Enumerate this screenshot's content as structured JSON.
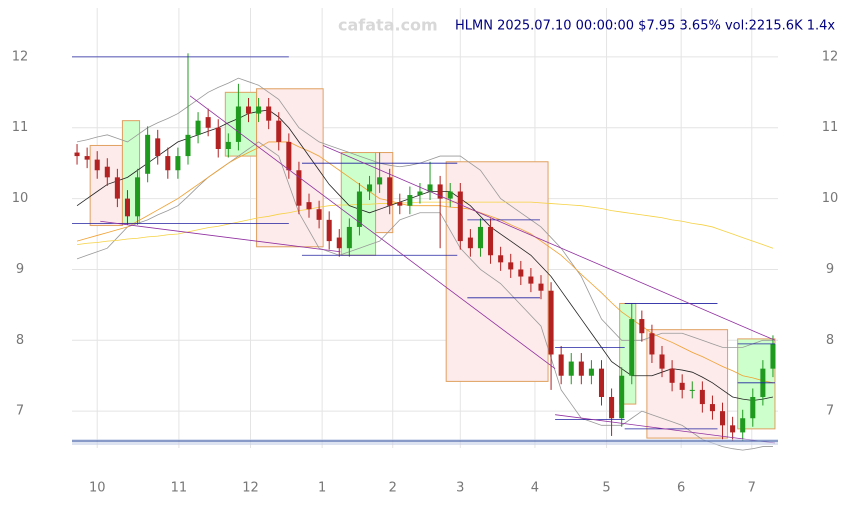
{
  "chart_data": {
    "type": "candlestick",
    "title": "HLMN 2025.07.10 00:00:00 $7.95 3.65% vol:2215.6K 1.4x",
    "watermark": "cafata.com",
    "up_color": "#1f9a1f",
    "down_color": "#b22222",
    "xlim": [
      -0.5,
      69.5
    ],
    "xticks": [
      {
        "value": 2.0,
        "label": "10"
      },
      {
        "value": 10.1,
        "label": "11"
      },
      {
        "value": 17.2,
        "label": "12"
      },
      {
        "value": 24.3,
        "label": "1"
      },
      {
        "value": 31.3,
        "label": "2"
      },
      {
        "value": 38.0,
        "label": "3"
      },
      {
        "value": 45.4,
        "label": "4"
      },
      {
        "value": 52.5,
        "label": "5"
      },
      {
        "value": 59.9,
        "label": "6"
      },
      {
        "value": 66.9,
        "label": "7"
      }
    ],
    "ylim": [
      6.48,
      12.69
    ],
    "yticks": [
      7,
      8,
      9,
      10,
      11,
      12
    ],
    "grid": true,
    "open": [
      10.65,
      10.6,
      10.55,
      10.45,
      10.3,
      10.0,
      9.75,
      10.35,
      10.85,
      10.6,
      10.4,
      10.6,
      10.9,
      11.15,
      11.0,
      10.7,
      10.8,
      11.3,
      11.2,
      11.3,
      11.1,
      10.8,
      10.4,
      9.95,
      9.85,
      9.7,
      9.45,
      9.3,
      9.6,
      10.1,
      10.2,
      10.3,
      9.95,
      9.9,
      10.05,
      10.1,
      10.2,
      10.0,
      10.1,
      9.45,
      9.3,
      9.6,
      9.2,
      9.1,
      9.0,
      8.9,
      8.8,
      8.7,
      7.8,
      7.5,
      7.7,
      7.5,
      7.6,
      7.2,
      6.9,
      7.5,
      8.3,
      8.1,
      7.8,
      7.6,
      7.4,
      7.3,
      7.3,
      7.1,
      7.0,
      6.8,
      6.7,
      6.9,
      7.2,
      7.6
    ],
    "high": [
      10.77,
      10.72,
      10.67,
      10.57,
      10.42,
      10.12,
      10.42,
      11.02,
      10.97,
      10.72,
      10.72,
      12.05,
      11.22,
      11.27,
      11.12,
      10.92,
      11.62,
      11.42,
      11.42,
      11.42,
      11.22,
      10.92,
      10.52,
      10.07,
      9.97,
      9.82,
      9.57,
      9.72,
      10.22,
      10.32,
      10.65,
      10.42,
      10.07,
      10.17,
      10.22,
      10.52,
      10.32,
      10.22,
      10.22,
      9.57,
      9.72,
      9.72,
      9.32,
      9.22,
      9.12,
      9.02,
      8.92,
      8.82,
      7.92,
      7.82,
      7.82,
      7.72,
      7.72,
      7.32,
      7.62,
      8.52,
      8.42,
      8.22,
      7.92,
      7.72,
      7.52,
      7.42,
      7.42,
      7.22,
      7.12,
      6.92,
      7.02,
      7.32,
      7.72,
      8.07
    ],
    "low": [
      10.48,
      10.43,
      10.28,
      10.18,
      9.88,
      9.63,
      9.63,
      10.23,
      10.48,
      10.28,
      10.28,
      10.48,
      10.78,
      10.88,
      10.58,
      10.58,
      10.68,
      11.08,
      11.08,
      10.98,
      10.68,
      10.28,
      9.78,
      9.73,
      9.58,
      9.28,
      9.18,
      9.18,
      9.48,
      9.98,
      10.08,
      9.78,
      9.78,
      9.78,
      9.93,
      9.98,
      9.3,
      9.88,
      9.28,
      9.18,
      9.18,
      9.08,
      8.98,
      8.88,
      8.78,
      8.68,
      8.58,
      7.3,
      7.38,
      7.38,
      7.38,
      7.38,
      7.08,
      6.65,
      6.78,
      7.38,
      7.98,
      7.68,
      7.48,
      7.28,
      7.18,
      7.18,
      6.98,
      6.88,
      6.6,
      6.58,
      6.58,
      6.78,
      7.08,
      7.48
    ],
    "close": [
      10.6,
      10.55,
      10.4,
      10.3,
      10.0,
      9.75,
      10.3,
      10.9,
      10.6,
      10.4,
      10.6,
      10.9,
      11.1,
      11.0,
      10.7,
      10.8,
      11.3,
      11.2,
      11.3,
      11.1,
      10.8,
      10.4,
      9.9,
      9.85,
      9.7,
      9.4,
      9.3,
      9.6,
      10.1,
      10.2,
      10.3,
      9.9,
      9.9,
      10.05,
      10.1,
      10.2,
      10.0,
      10.1,
      9.4,
      9.3,
      9.6,
      9.2,
      9.1,
      9.0,
      8.9,
      8.8,
      8.7,
      7.8,
      7.5,
      7.7,
      7.5,
      7.6,
      7.2,
      6.9,
      7.5,
      8.3,
      8.1,
      7.8,
      7.6,
      7.4,
      7.3,
      7.3,
      7.1,
      7.0,
      6.8,
      6.7,
      6.9,
      7.2,
      7.6,
      7.95
    ],
    "lines": [
      {
        "color": "#999999",
        "values": [
          10.8,
          10.83,
          10.87,
          10.9,
          10.85,
          10.8,
          10.9,
          11.0,
          11.07,
          11.13,
          11.2,
          11.3,
          11.4,
          11.5,
          11.57,
          11.63,
          11.7,
          11.65,
          11.6,
          11.5,
          11.4,
          11.2,
          11.0,
          10.9,
          10.8,
          10.75,
          10.7,
          10.65,
          10.6,
          10.55,
          10.5,
          10.47,
          10.45,
          10.47,
          10.5,
          10.55,
          10.6,
          10.6,
          10.6,
          10.5,
          10.4,
          10.2,
          10.0,
          9.9,
          9.8,
          9.7,
          9.6,
          9.45,
          9.3,
          9.1,
          8.9,
          8.6,
          8.3,
          8.15,
          8.0,
          8.0,
          8.0,
          8.05,
          8.1,
          8.1,
          8.1,
          8.05,
          8.0,
          7.95,
          7.9,
          7.9,
          7.9,
          7.95,
          8.0,
          8.0
        ]
      },
      {
        "color": "#999999",
        "values": [
          9.15,
          9.2,
          9.25,
          9.3,
          9.45,
          9.6,
          9.65,
          9.7,
          9.77,
          9.83,
          9.9,
          10.03,
          10.17,
          10.3,
          10.4,
          10.5,
          10.6,
          10.7,
          10.8,
          10.7,
          10.6,
          10.2,
          9.8,
          9.55,
          9.3,
          9.25,
          9.2,
          9.25,
          9.3,
          9.35,
          9.4,
          9.55,
          9.7,
          9.75,
          9.8,
          9.8,
          9.8,
          9.55,
          9.3,
          9.15,
          9.0,
          8.9,
          8.8,
          8.65,
          8.5,
          8.35,
          8.2,
          7.75,
          7.3,
          7.1,
          6.9,
          6.85,
          6.8,
          6.8,
          6.8,
          6.9,
          7.0,
          6.95,
          6.9,
          6.85,
          6.8,
          6.7,
          6.6,
          6.55,
          6.5,
          6.47,
          6.45,
          6.47,
          6.5,
          6.5
        ]
      },
      {
        "color": "#f5d142",
        "values": [
          9.35,
          9.37,
          9.38,
          9.4,
          9.41,
          9.43,
          9.44,
          9.46,
          9.47,
          9.49,
          9.5,
          9.53,
          9.56,
          9.59,
          9.61,
          9.64,
          9.67,
          9.7,
          9.73,
          9.75,
          9.78,
          9.8,
          9.83,
          9.85,
          9.88,
          9.9,
          9.91,
          9.91,
          9.92,
          9.92,
          9.93,
          9.93,
          9.94,
          9.94,
          9.95,
          9.95,
          9.95,
          9.95,
          9.95,
          9.95,
          9.95,
          9.95,
          9.95,
          9.95,
          9.95,
          9.95,
          9.94,
          9.93,
          9.92,
          9.91,
          9.9,
          9.88,
          9.86,
          9.83,
          9.81,
          9.79,
          9.77,
          9.75,
          9.73,
          9.7,
          9.68,
          9.65,
          9.63,
          9.6,
          9.55,
          9.5,
          9.45,
          9.4,
          9.35,
          9.3
        ]
      },
      {
        "color": "#f0a030",
        "values": [
          9.4,
          9.44,
          9.48,
          9.52,
          9.56,
          9.6,
          9.68,
          9.76,
          9.84,
          9.92,
          10.0,
          10.1,
          10.2,
          10.3,
          10.4,
          10.5,
          10.58,
          10.65,
          10.72,
          10.8,
          10.8,
          10.8,
          10.73,
          10.67,
          10.6,
          10.5,
          10.4,
          10.3,
          10.2,
          10.1,
          10.0,
          9.97,
          9.93,
          9.9,
          9.9,
          9.9,
          9.9,
          9.88,
          9.87,
          9.85,
          9.8,
          9.75,
          9.7,
          9.63,
          9.57,
          9.5,
          9.4,
          9.3,
          9.2,
          9.07,
          8.93,
          8.8,
          8.67,
          8.53,
          8.4,
          8.3,
          8.2,
          8.1,
          8.03,
          7.97,
          7.9,
          7.83,
          7.77,
          7.7,
          7.63,
          7.57,
          7.5,
          7.47,
          7.43,
          7.4
        ]
      },
      {
        "color": "#222222",
        "values": [
          9.9,
          10.0,
          10.1,
          10.2,
          10.25,
          10.3,
          10.4,
          10.5,
          10.6,
          10.7,
          10.8,
          10.85,
          10.9,
          10.95,
          11.0,
          11.07,
          11.13,
          11.2,
          11.23,
          11.25,
          11.15,
          11.0,
          10.8,
          10.6,
          10.4,
          10.2,
          10.05,
          9.9,
          9.85,
          9.8,
          9.85,
          9.9,
          9.95,
          10.0,
          10.05,
          10.1,
          10.1,
          10.1,
          10.0,
          9.9,
          9.75,
          9.6,
          9.5,
          9.4,
          9.3,
          9.2,
          9.05,
          8.9,
          8.7,
          8.5,
          8.3,
          8.1,
          7.9,
          7.7,
          7.6,
          7.5,
          7.5,
          7.5,
          7.55,
          7.6,
          7.58,
          7.55,
          7.48,
          7.4,
          7.3,
          7.2,
          7.17,
          7.15,
          7.17,
          7.2
        ]
      }
    ],
    "zones": [
      {
        "start": 1.3,
        "end": 4.5,
        "low": 9.62,
        "high": 10.75,
        "color": "#fdeaea"
      },
      {
        "start": 4.5,
        "end": 6.2,
        "low": 9.65,
        "high": 11.1,
        "color": "#ccffcc"
      },
      {
        "start": 14.7,
        "end": 17.8,
        "low": 10.6,
        "high": 11.5,
        "color": "#ccffcc"
      },
      {
        "start": 17.8,
        "end": 24.4,
        "low": 9.32,
        "high": 11.55,
        "color": "#fdeaea"
      },
      {
        "start": 26.2,
        "end": 29.6,
        "low": 9.2,
        "high": 10.65,
        "color": "#ccffcc"
      },
      {
        "start": 29.6,
        "end": 31.3,
        "low": 9.52,
        "high": 10.65,
        "color": "#fdeaea"
      },
      {
        "start": 36.6,
        "end": 46.7,
        "low": 7.42,
        "high": 10.52,
        "color": "#fdeaea"
      },
      {
        "start": 53.8,
        "end": 55.4,
        "low": 7.1,
        "high": 8.52,
        "color": "#ccffcc"
      },
      {
        "start": 56.5,
        "end": 64.5,
        "low": 6.62,
        "high": 8.15,
        "color": "#fdeaea"
      },
      {
        "start": 65.5,
        "end": 69.2,
        "low": 6.75,
        "high": 8.02,
        "color": "#ccffcc"
      }
    ],
    "levels": [
      {
        "start": -0.5,
        "end": 21.0,
        "value": 12.0
      },
      {
        "start": -0.5,
        "end": 21.0,
        "value": 9.65
      },
      {
        "start": 22.3,
        "end": 37.7,
        "value": 10.5
      },
      {
        "start": 22.3,
        "end": 37.7,
        "value": 9.2
      },
      {
        "start": 38.7,
        "end": 45.9,
        "value": 9.7
      },
      {
        "start": 38.7,
        "end": 45.9,
        "value": 8.6
      },
      {
        "start": 47.4,
        "end": 54.3,
        "value": 7.9
      },
      {
        "start": 47.4,
        "end": 54.3,
        "value": 6.88
      },
      {
        "start": 54.3,
        "end": 63.5,
        "value": 8.52
      },
      {
        "start": 54.3,
        "end": 63.5,
        "value": 6.75
      },
      {
        "start": 65.5,
        "end": 69.2,
        "value": 7.95
      },
      {
        "start": 65.5,
        "end": 69.2,
        "value": 7.4
      }
    ],
    "trendlines": [
      {
        "x0": 2.3,
        "y0": 9.68,
        "x1": 26.1,
        "y1": 9.25
      },
      {
        "x0": 11.2,
        "y0": 11.45,
        "x1": 47.4,
        "y1": 7.6
      },
      {
        "x0": 24.4,
        "y0": 10.75,
        "x1": 69.2,
        "y1": 8.0
      },
      {
        "x0": 47.4,
        "y0": 6.95,
        "x1": 69.2,
        "y1": 6.55
      }
    ]
  }
}
